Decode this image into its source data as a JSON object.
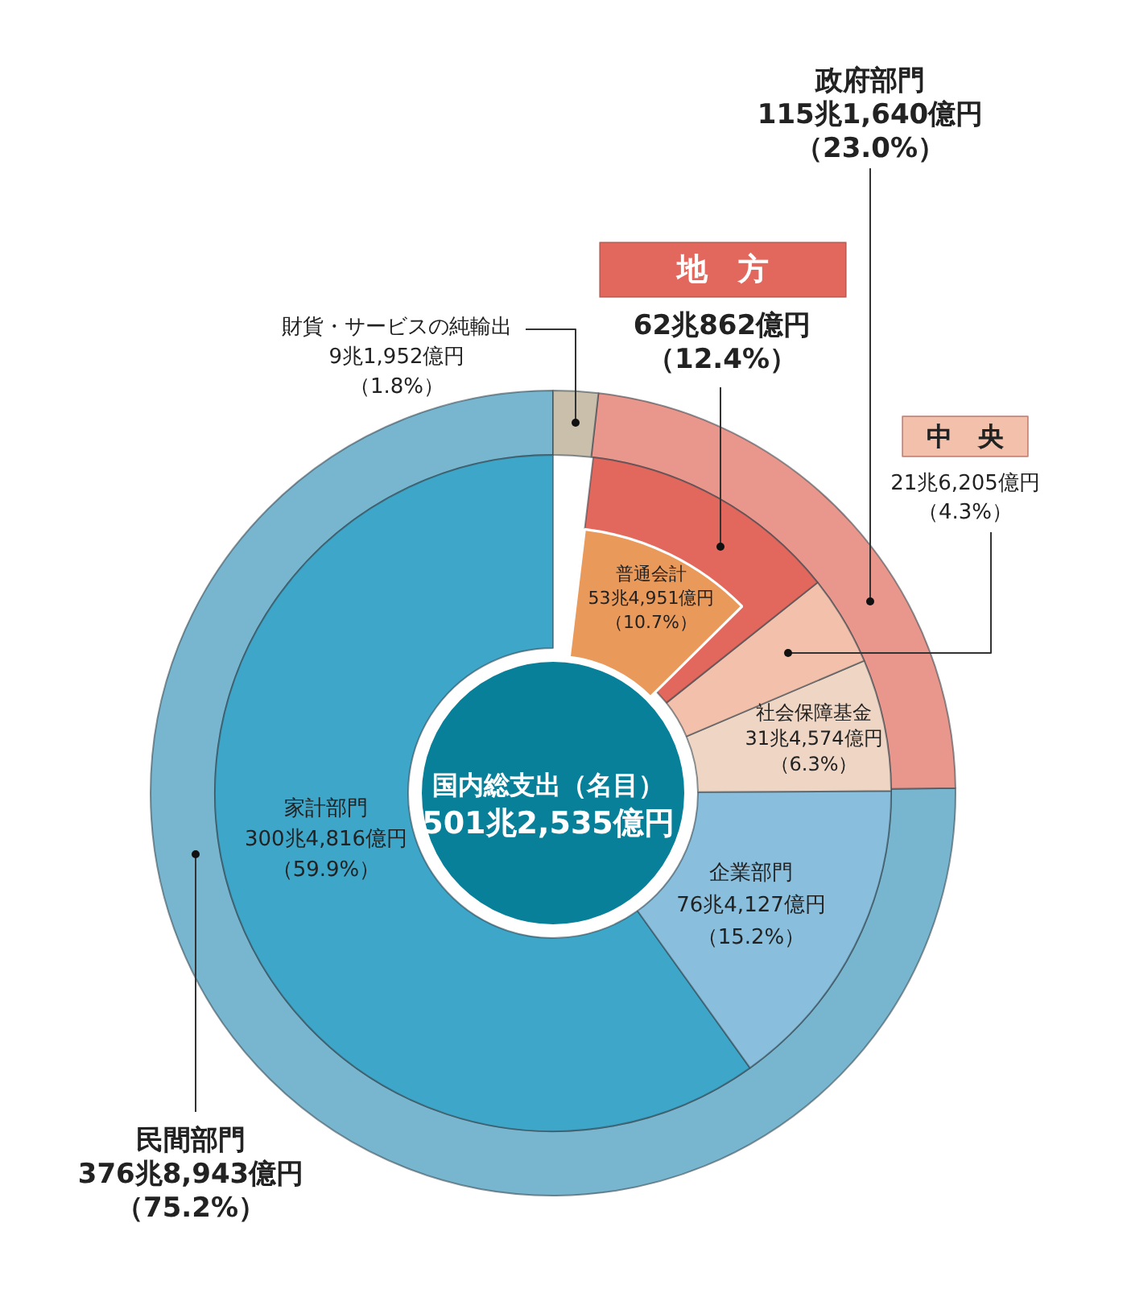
{
  "chart_data": [
    {
      "type": "donut",
      "title": "国内総支出（名目）",
      "subtitle": "501兆2,535億円",
      "categories": [
        "民間部門",
        "政府部門",
        "財貨・サービスの純輸出"
      ],
      "values": [
        75.2,
        23.0,
        1.8
      ],
      "colors": [
        "#78b6cf",
        "#e9978d",
        "#c9bfab"
      ],
      "value_labels": [
        "376兆8,943億円（75.2%）",
        "115兆1,640億円（23.0%）",
        "9兆1,952億円（1.8%）"
      ]
    },
    {
      "type": "donut",
      "categories": [
        "家計部門",
        "企業部門",
        "社会保障基金",
        "中　央",
        "地　方"
      ],
      "values": [
        59.9,
        15.2,
        6.3,
        4.3,
        12.4
      ],
      "colors": [
        "#3ea6c9",
        "#89bfdd",
        "#efd6c4",
        "#f3c0ab",
        "#e2685e"
      ],
      "value_labels": [
        "300兆4,816億円（59.9%）",
        "76兆4,127億円（15.2%）",
        "31兆4,574億円（6.3%）",
        "21兆6,205億円（4.3%）",
        "62兆862億円（12.4%）"
      ]
    },
    {
      "type": "pie",
      "categories": [
        null,
        null,
        null,
        null,
        "普通会計"
      ],
      "values": [
        null,
        null,
        null,
        null,
        10.7
      ],
      "colors": [
        null,
        null,
        null,
        null,
        "#e9995a"
      ],
      "value_labels": [
        null,
        null,
        null,
        null,
        "53兆4,951億円（10.7%）"
      ]
    }
  ]
}
